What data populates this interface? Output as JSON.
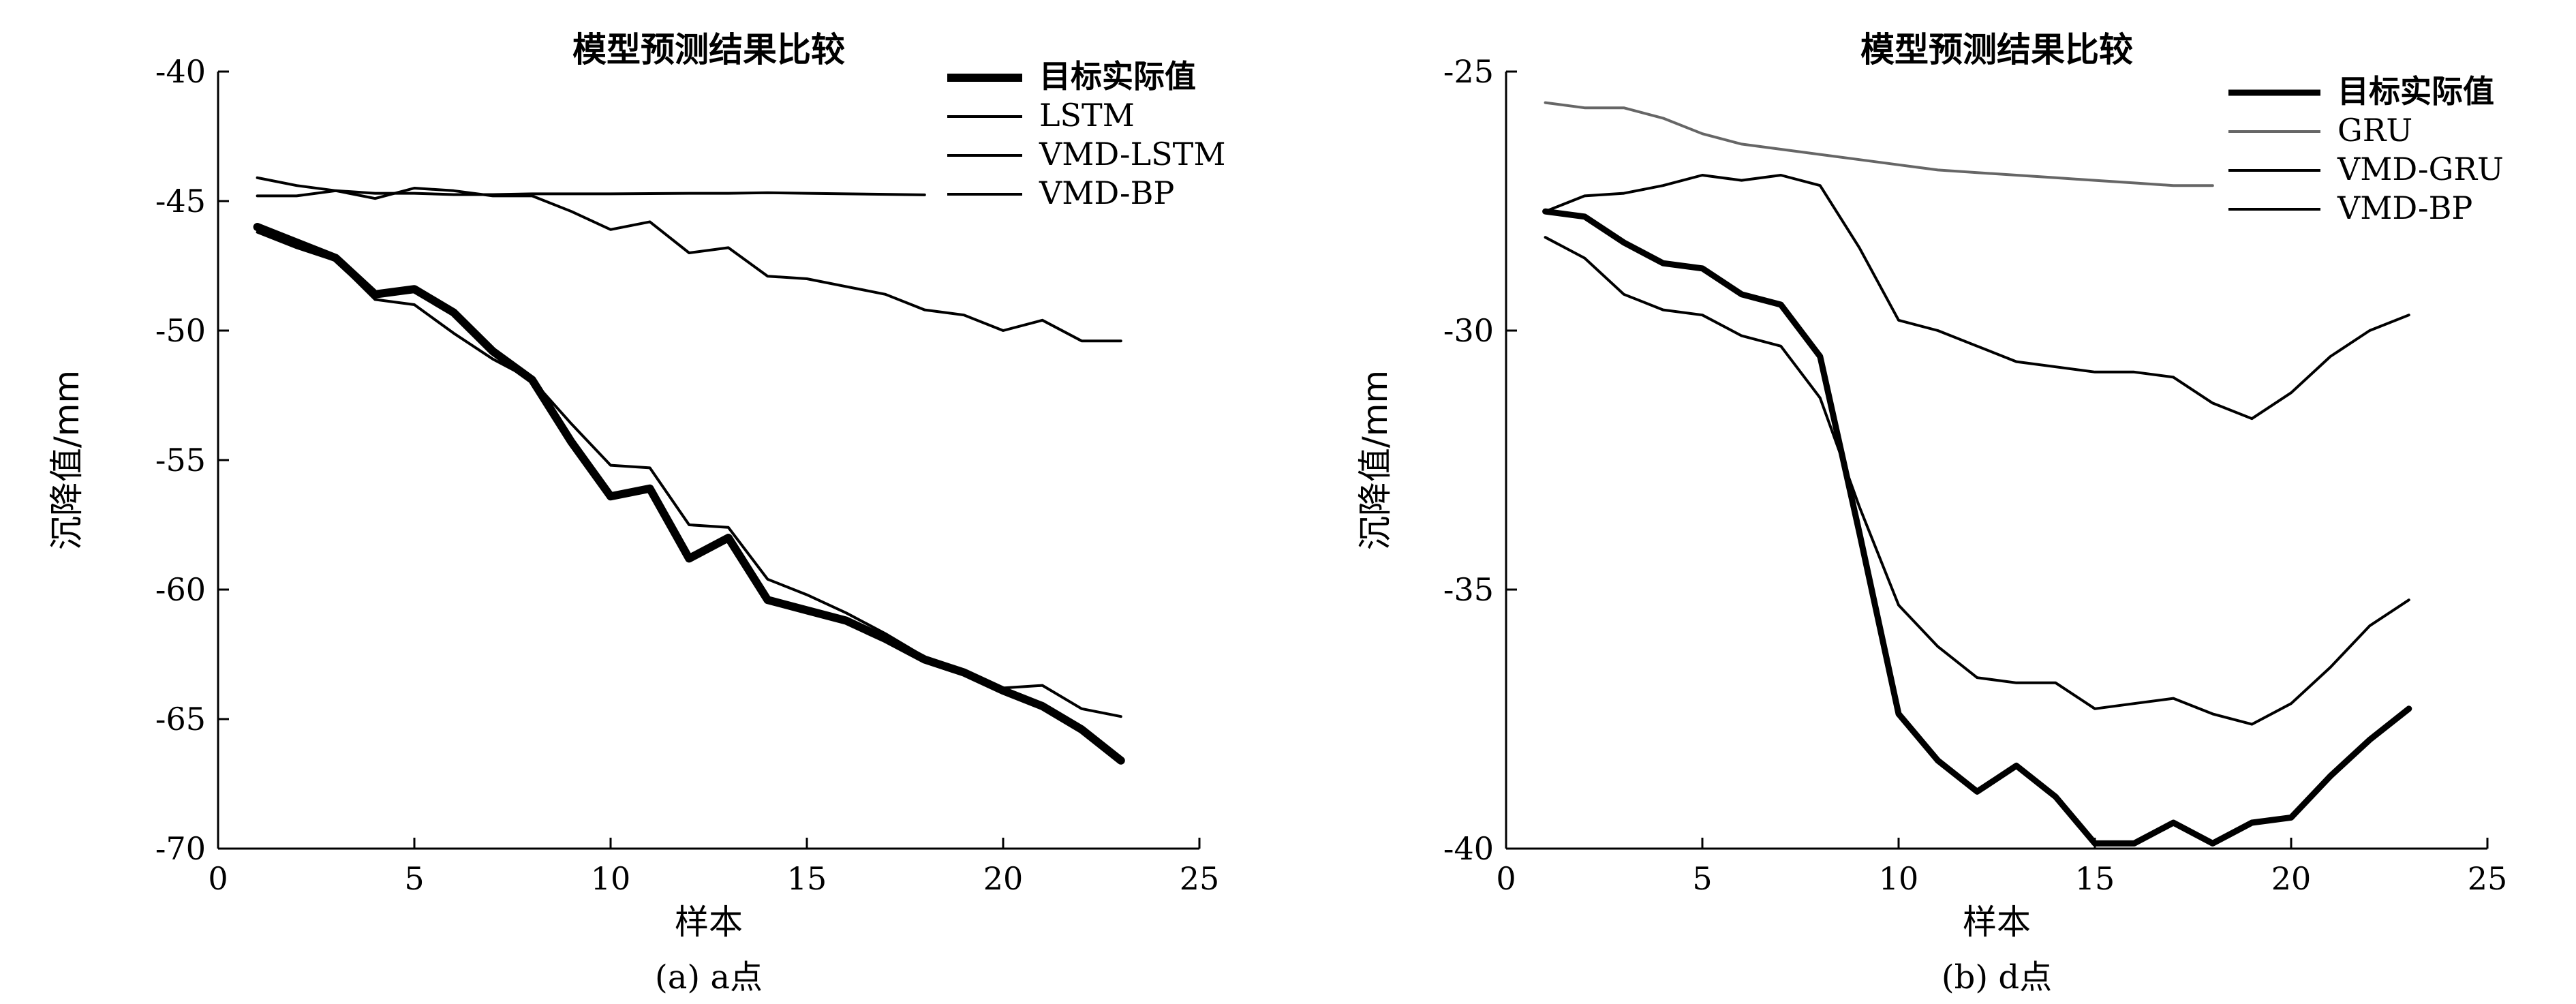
{
  "chart_data": [
    {
      "type": "line",
      "title": "模型预测结果比较",
      "xlabel": "样本",
      "ylabel": "沉降值/mm",
      "caption": "(a) a点",
      "xlim": [
        0,
        25
      ],
      "ylim": [
        -70,
        -40
      ],
      "xticks": [
        "0",
        "5",
        "10",
        "15",
        "20",
        "25"
      ],
      "yticks": [
        "-40",
        "-45",
        "-50",
        "-55",
        "-60",
        "-65",
        "-70"
      ],
      "legend_position": "top-right",
      "grid": false,
      "series": [
        {
          "name": "目标实际值",
          "color": "#000000",
          "width": 12,
          "x": [
            1,
            2,
            3,
            4,
            5,
            6,
            7,
            8,
            9,
            10,
            11,
            12,
            13,
            14,
            15,
            16,
            17,
            18,
            19,
            20,
            21,
            22,
            23
          ],
          "y": [
            -46.0,
            -46.6,
            -47.2,
            -48.6,
            -48.4,
            -49.3,
            -50.8,
            -51.9,
            -54.3,
            -56.4,
            -56.1,
            -58.8,
            -58.0,
            -60.4,
            -60.8,
            -61.2,
            -61.9,
            -62.7,
            -63.2,
            -63.9,
            -64.5,
            -65.4,
            -66.6
          ]
        },
        {
          "name": "LSTM",
          "color": "#000000",
          "width": 4,
          "x": [
            1,
            2,
            3,
            4,
            5,
            6,
            7,
            8,
            9,
            10,
            11,
            12,
            13,
            14,
            15,
            16,
            17,
            18,
            19,
            20,
            21,
            22,
            23
          ],
          "y": [
            -46.2,
            -46.8,
            -47.3,
            -48.8,
            -49.0,
            -50.1,
            -51.1,
            -51.9,
            -53.6,
            -55.2,
            -55.3,
            -57.5,
            -57.6,
            -59.6,
            -60.2,
            -60.9,
            -61.7,
            -62.6,
            -63.1,
            -63.8,
            -63.7,
            -64.6,
            -64.9
          ]
        },
        {
          "name": "VMD-LSTM",
          "color": "#000000",
          "width": 4,
          "x": [
            1,
            2,
            3,
            4,
            5,
            6,
            7,
            8,
            9,
            10,
            11,
            12,
            13,
            14,
            15,
            16,
            17,
            18,
            19,
            20,
            21,
            22,
            23
          ],
          "y": [
            -44.1,
            -44.4,
            -44.6,
            -44.9,
            -44.5,
            -44.6,
            -44.8,
            -44.8,
            -45.4,
            -46.1,
            -45.8,
            -47.0,
            -46.8,
            -47.9,
            -48.0,
            -48.3,
            -48.6,
            -49.2,
            -49.4,
            -50.0,
            -49.6,
            -50.4,
            -50.4
          ]
        },
        {
          "name": "VMD-BP",
          "color": "#000000",
          "width": 4,
          "x": [
            1,
            2,
            3,
            4,
            5,
            6,
            7,
            8,
            9,
            10,
            11,
            12,
            13,
            14,
            15,
            16,
            17,
            18
          ],
          "y": [
            -44.8,
            -44.8,
            -44.6,
            -44.7,
            -44.7,
            -44.75,
            -44.75,
            -44.72,
            -44.72,
            -44.72,
            -44.71,
            -44.7,
            -44.7,
            -44.68,
            -44.7,
            -44.72,
            -44.74,
            -44.76
          ]
        }
      ]
    },
    {
      "type": "line",
      "title": "模型预测结果比较",
      "xlabel": "样本",
      "ylabel": "沉降值/mm",
      "caption": "(b) d点",
      "xlim": [
        0,
        25
      ],
      "ylim": [
        -40,
        -25
      ],
      "xticks": [
        "0",
        "5",
        "10",
        "15",
        "20",
        "25"
      ],
      "yticks": [
        "-25",
        "-30",
        "-35",
        "-40"
      ],
      "legend_position": "top-right",
      "grid": false,
      "series": [
        {
          "name": "目标实际值",
          "color": "#000000",
          "width": 9,
          "x": [
            1,
            2,
            3,
            4,
            5,
            6,
            7,
            8,
            9,
            10,
            11,
            12,
            13,
            14,
            15,
            16,
            17,
            18,
            19,
            20,
            21,
            22,
            23
          ],
          "y": [
            -27.7,
            -27.8,
            -28.3,
            -28.7,
            -28.8,
            -29.3,
            -29.5,
            -30.5,
            -33.9,
            -37.4,
            -38.3,
            -38.9,
            -38.4,
            -39.0,
            -39.9,
            -39.9,
            -39.5,
            -39.9,
            -39.5,
            -39.4,
            -38.6,
            -37.9,
            -37.3
          ]
        },
        {
          "name": "GRU",
          "color": "#666666",
          "width": 4,
          "x": [
            1,
            2,
            3,
            4,
            5,
            6,
            7,
            8,
            9,
            10,
            11,
            12,
            13,
            14,
            15,
            16,
            17,
            18
          ],
          "y": [
            -25.6,
            -25.7,
            -25.7,
            -25.9,
            -26.2,
            -26.4,
            -26.5,
            -26.6,
            -26.7,
            -26.8,
            -26.9,
            -26.95,
            -27.0,
            -27.05,
            -27.1,
            -27.15,
            -27.2,
            -27.2
          ]
        },
        {
          "name": "VMD-GRU",
          "color": "#000000",
          "width": 4,
          "x": [
            1,
            2,
            3,
            4,
            5,
            6,
            7,
            8,
            9,
            10,
            11,
            12,
            13,
            14,
            15,
            16,
            17,
            18,
            19,
            20,
            21,
            22,
            23
          ],
          "y": [
            -27.7,
            -27.4,
            -27.35,
            -27.2,
            -27.0,
            -27.1,
            -27.0,
            -27.2,
            -28.4,
            -29.8,
            -30.0,
            -30.3,
            -30.6,
            -30.7,
            -30.8,
            -30.8,
            -30.9,
            -31.4,
            -31.7,
            -31.2,
            -30.5,
            -30.0,
            -29.7
          ]
        },
        {
          "name": "VMD-BP",
          "color": "#000000",
          "width": 4,
          "x": [
            1,
            2,
            3,
            4,
            5,
            6,
            7,
            8,
            9,
            10,
            11,
            12,
            13,
            14,
            15,
            16,
            17,
            18,
            19,
            20,
            21,
            22,
            23
          ],
          "y": [
            -28.2,
            -28.6,
            -29.3,
            -29.6,
            -29.7,
            -30.1,
            -30.3,
            -31.3,
            -33.4,
            -35.3,
            -36.1,
            -36.7,
            -36.8,
            -36.8,
            -37.3,
            -37.2,
            -37.1,
            -37.4,
            -37.6,
            -37.2,
            -36.5,
            -35.7,
            -35.2
          ]
        }
      ]
    }
  ]
}
